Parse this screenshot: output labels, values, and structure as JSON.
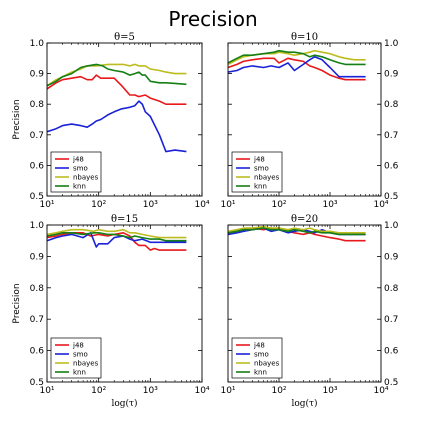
{
  "figure": {
    "title": "Precision"
  },
  "chart_data": [
    {
      "type": "line",
      "title": "θ=5",
      "xlabel": "",
      "ylabel": "Precision",
      "xscale": "log",
      "xlim": [
        10,
        10000
      ],
      "ylim": [
        0.5,
        1.0
      ],
      "yticks": [
        "0.5",
        "0.6",
        "0.7",
        "0.8",
        "0.9",
        "1.0"
      ],
      "xticks": [
        "10¹",
        "10²",
        "10³",
        "10⁴"
      ],
      "legend": "bottom-left",
      "series": [
        {
          "name": "j48",
          "color": "#e8191c",
          "x": [
            10,
            15,
            20,
            30,
            45,
            60,
            75,
            90,
            110,
            150,
            200,
            280,
            400,
            500,
            600,
            800,
            1000,
            1500,
            2000,
            3000,
            5000
          ],
          "y": [
            0.85,
            0.87,
            0.88,
            0.885,
            0.89,
            0.88,
            0.88,
            0.895,
            0.885,
            0.885,
            0.885,
            0.86,
            0.83,
            0.83,
            0.825,
            0.83,
            0.82,
            0.81,
            0.8,
            0.8,
            0.8
          ]
        },
        {
          "name": "smo",
          "color": "#1a22d8",
          "x": [
            10,
            15,
            20,
            30,
            45,
            60,
            75,
            90,
            110,
            150,
            200,
            280,
            400,
            500,
            600,
            700,
            800,
            1000,
            1500,
            2000,
            3000,
            5000
          ],
          "y": [
            0.71,
            0.72,
            0.73,
            0.735,
            0.73,
            0.725,
            0.735,
            0.745,
            0.75,
            0.765,
            0.775,
            0.785,
            0.79,
            0.795,
            0.81,
            0.8,
            0.775,
            0.76,
            0.7,
            0.645,
            0.65,
            0.645
          ]
        },
        {
          "name": "nbayes",
          "color": "#bcbc1f",
          "x": [
            10,
            15,
            20,
            30,
            45,
            60,
            90,
            150,
            200,
            300,
            400,
            500,
            600,
            800,
            1000,
            1500,
            2000,
            3000,
            5000
          ],
          "y": [
            0.86,
            0.88,
            0.89,
            0.905,
            0.915,
            0.925,
            0.925,
            0.93,
            0.93,
            0.93,
            0.925,
            0.93,
            0.925,
            0.925,
            0.915,
            0.91,
            0.905,
            0.9,
            0.9
          ]
        },
        {
          "name": "knn",
          "color": "#157f15",
          "x": [
            10,
            15,
            20,
            30,
            45,
            60,
            90,
            120,
            150,
            200,
            300,
            400,
            500,
            600,
            700,
            800,
            1000,
            1500,
            2000,
            3000,
            5000
          ],
          "y": [
            0.86,
            0.875,
            0.89,
            0.9,
            0.92,
            0.925,
            0.93,
            0.925,
            0.915,
            0.91,
            0.905,
            0.895,
            0.9,
            0.905,
            0.895,
            0.895,
            0.875,
            0.87,
            0.87,
            0.868,
            0.865
          ]
        }
      ]
    },
    {
      "type": "line",
      "title": "θ=10",
      "xlabel": "",
      "ylabel": "",
      "xscale": "log",
      "xlim": [
        10,
        10000
      ],
      "ylim": [
        0.5,
        1.0
      ],
      "yticks": [
        "0.5",
        "0.6",
        "0.7",
        "0.8",
        "0.9",
        "1.0"
      ],
      "xticks": [
        "10¹",
        "10²",
        "10³",
        "10⁴"
      ],
      "legend": "bottom-left",
      "series": [
        {
          "name": "j48",
          "color": "#e8191c",
          "x": [
            10,
            15,
            20,
            30,
            50,
            80,
            100,
            150,
            200,
            300,
            400,
            500,
            700,
            1000,
            1500,
            2000,
            3000,
            5000
          ],
          "y": [
            0.92,
            0.93,
            0.94,
            0.945,
            0.95,
            0.95,
            0.935,
            0.95,
            0.945,
            0.94,
            0.925,
            0.92,
            0.91,
            0.895,
            0.885,
            0.88,
            0.88,
            0.88
          ]
        },
        {
          "name": "smo",
          "color": "#1a22d8",
          "x": [
            10,
            15,
            20,
            30,
            50,
            70,
            100,
            150,
            200,
            300,
            400,
            500,
            700,
            1000,
            1500,
            2000,
            3000,
            5000
          ],
          "y": [
            0.905,
            0.91,
            0.92,
            0.925,
            0.92,
            0.925,
            0.92,
            0.935,
            0.91,
            0.93,
            0.945,
            0.955,
            0.945,
            0.92,
            0.89,
            0.89,
            0.89,
            0.89
          ]
        },
        {
          "name": "nbayes",
          "color": "#bcbc1f",
          "x": [
            10,
            15,
            20,
            30,
            50,
            80,
            100,
            150,
            200,
            300,
            400,
            500,
            700,
            1000,
            1500,
            2000,
            3000,
            5000
          ],
          "y": [
            0.93,
            0.945,
            0.955,
            0.96,
            0.965,
            0.965,
            0.97,
            0.965,
            0.96,
            0.965,
            0.97,
            0.975,
            0.97,
            0.965,
            0.955,
            0.95,
            0.945,
            0.945
          ]
        },
        {
          "name": "knn",
          "color": "#157f15",
          "x": [
            10,
            15,
            20,
            30,
            50,
            80,
            100,
            150,
            200,
            300,
            400,
            500,
            700,
            1000,
            1500,
            2000,
            3000,
            5000
          ],
          "y": [
            0.935,
            0.95,
            0.96,
            0.96,
            0.965,
            0.97,
            0.975,
            0.97,
            0.97,
            0.965,
            0.955,
            0.96,
            0.955,
            0.945,
            0.935,
            0.93,
            0.93,
            0.93
          ]
        }
      ]
    },
    {
      "type": "line",
      "title": "θ=15",
      "xlabel": "log(τ)",
      "ylabel": "Precision",
      "xscale": "log",
      "xlim": [
        10,
        10000
      ],
      "ylim": [
        0.5,
        1.0
      ],
      "yticks": [
        "0.5",
        "0.6",
        "0.7",
        "0.8",
        "0.9",
        "1.0"
      ],
      "xticks": [
        "10¹",
        "10²",
        "10³",
        "10⁴"
      ],
      "legend": "bottom-left",
      "series": [
        {
          "name": "j48",
          "color": "#e8191c",
          "x": [
            10,
            15,
            20,
            30,
            50,
            70,
            100,
            150,
            200,
            300,
            400,
            500,
            600,
            800,
            1000,
            1200,
            1500,
            2000,
            3000,
            5000
          ],
          "y": [
            0.96,
            0.965,
            0.97,
            0.975,
            0.975,
            0.965,
            0.97,
            0.965,
            0.97,
            0.975,
            0.965,
            0.945,
            0.935,
            0.935,
            0.92,
            0.925,
            0.92,
            0.92,
            0.92,
            0.92
          ]
        },
        {
          "name": "smo",
          "color": "#1a22d8",
          "x": [
            10,
            15,
            20,
            30,
            50,
            70,
            90,
            100,
            150,
            200,
            300,
            400,
            500,
            700,
            1000,
            1500,
            2000,
            3000,
            5000
          ],
          "y": [
            0.95,
            0.96,
            0.965,
            0.97,
            0.96,
            0.975,
            0.93,
            0.94,
            0.94,
            0.96,
            0.965,
            0.955,
            0.95,
            0.955,
            0.945,
            0.945,
            0.945,
            0.945,
            0.945
          ]
        },
        {
          "name": "nbayes",
          "color": "#bcbc1f",
          "x": [
            10,
            15,
            20,
            30,
            50,
            80,
            100,
            150,
            200,
            300,
            400,
            500,
            700,
            1000,
            1500,
            2000,
            3000,
            5000
          ],
          "y": [
            0.97,
            0.975,
            0.98,
            0.985,
            0.985,
            0.98,
            0.985,
            0.98,
            0.98,
            0.985,
            0.975,
            0.975,
            0.97,
            0.965,
            0.96,
            0.96,
            0.96,
            0.96
          ]
        },
        {
          "name": "knn",
          "color": "#157f15",
          "x": [
            10,
            15,
            20,
            30,
            50,
            80,
            100,
            150,
            200,
            300,
            400,
            500,
            700,
            1000,
            1500,
            2000,
            3000,
            5000
          ],
          "y": [
            0.965,
            0.97,
            0.975,
            0.975,
            0.97,
            0.975,
            0.975,
            0.97,
            0.97,
            0.965,
            0.96,
            0.965,
            0.96,
            0.955,
            0.955,
            0.95,
            0.95,
            0.95
          ]
        }
      ]
    },
    {
      "type": "line",
      "title": "θ=20",
      "xlabel": "log(τ)",
      "ylabel": "",
      "xscale": "log",
      "xlim": [
        10,
        10000
      ],
      "ylim": [
        0.5,
        1.0
      ],
      "yticks": [
        "0.5",
        "0.6",
        "0.7",
        "0.8",
        "0.9",
        "1.0"
      ],
      "xticks": [
        "10¹",
        "10²",
        "10³",
        "10⁴"
      ],
      "legend": "bottom-left",
      "series": [
        {
          "name": "j48",
          "color": "#e8191c",
          "x": [
            10,
            15,
            20,
            30,
            50,
            70,
            100,
            150,
            200,
            300,
            400,
            500,
            700,
            1000,
            1500,
            2000,
            3000,
            5000
          ],
          "y": [
            0.975,
            0.98,
            0.985,
            0.99,
            0.985,
            0.99,
            0.985,
            0.98,
            0.975,
            0.97,
            0.975,
            0.97,
            0.965,
            0.96,
            0.955,
            0.95,
            0.95,
            0.95
          ]
        },
        {
          "name": "smo",
          "color": "#1a22d8",
          "x": [
            10,
            15,
            20,
            30,
            50,
            70,
            100,
            150,
            200,
            300,
            400,
            500,
            700,
            1000,
            1500,
            2000,
            3000,
            5000
          ],
          "y": [
            0.97,
            0.975,
            0.98,
            0.985,
            0.99,
            0.98,
            0.985,
            0.975,
            0.98,
            0.985,
            0.98,
            0.975,
            0.985,
            0.975,
            0.97,
            0.97,
            0.97,
            0.97
          ]
        },
        {
          "name": "nbayes",
          "color": "#bcbc1f",
          "x": [
            10,
            15,
            20,
            30,
            50,
            70,
            100,
            150,
            200,
            300,
            400,
            500,
            700,
            1000,
            1500,
            2000,
            3000,
            5000
          ],
          "y": [
            0.98,
            0.985,
            0.99,
            0.99,
            0.995,
            0.99,
            0.99,
            0.985,
            0.99,
            0.985,
            0.99,
            0.985,
            0.98,
            0.98,
            0.975,
            0.975,
            0.975,
            0.975
          ]
        },
        {
          "name": "knn",
          "color": "#157f15",
          "x": [
            10,
            15,
            20,
            30,
            50,
            70,
            100,
            150,
            200,
            300,
            400,
            500,
            700,
            1000,
            1500,
            2000,
            3000,
            5000
          ],
          "y": [
            0.975,
            0.98,
            0.985,
            0.985,
            0.99,
            0.985,
            0.985,
            0.98,
            0.985,
            0.98,
            0.975,
            0.98,
            0.975,
            0.975,
            0.97,
            0.97,
            0.97,
            0.97
          ]
        }
      ]
    }
  ]
}
